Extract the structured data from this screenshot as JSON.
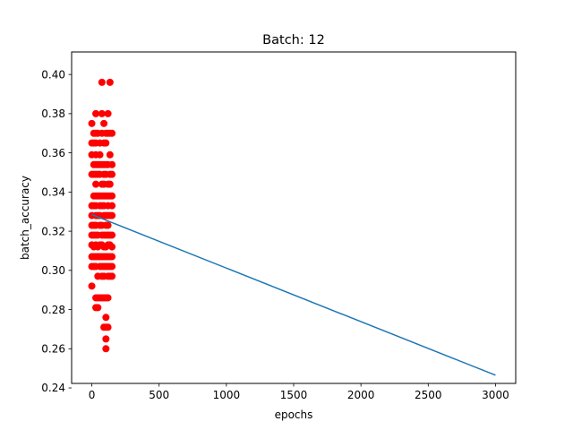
{
  "chart_data": {
    "type": "scatter",
    "title": "Batch: 12",
    "xlabel": "epochs",
    "ylabel": "batch_accuracy",
    "xlim": [
      -150,
      3150
    ],
    "ylim": [
      0.2423,
      0.4115
    ],
    "grid": false,
    "x_ticks": [
      0,
      500,
      1000,
      1500,
      2000,
      2500,
      3000
    ],
    "y_ticks": [
      0.24,
      0.26,
      0.28,
      0.3,
      0.32,
      0.34,
      0.36,
      0.38,
      0.4
    ],
    "x_tick_labels": [
      "0",
      "500",
      "1000",
      "1500",
      "2000",
      "2500",
      "3000"
    ],
    "y_tick_labels": [
      "0.24",
      "0.26",
      "0.28",
      "0.30",
      "0.32",
      "0.34",
      "0.36",
      "0.38",
      "0.40"
    ],
    "series": [
      {
        "kind": "scatter",
        "color": "#ff0000",
        "points": [
          [
            0,
            0.375
          ],
          [
            0,
            0.365
          ],
          [
            0,
            0.359
          ],
          [
            0,
            0.349
          ],
          [
            0,
            0.333
          ],
          [
            0,
            0.328
          ],
          [
            0,
            0.323
          ],
          [
            0,
            0.318
          ],
          [
            0,
            0.313
          ],
          [
            0,
            0.307
          ],
          [
            0,
            0.302
          ],
          [
            0,
            0.292
          ],
          [
            15,
            0.37
          ],
          [
            15,
            0.365
          ],
          [
            15,
            0.354
          ],
          [
            15,
            0.349
          ],
          [
            15,
            0.338
          ],
          [
            15,
            0.333
          ],
          [
            15,
            0.323
          ],
          [
            15,
            0.318
          ],
          [
            15,
            0.312
          ],
          [
            15,
            0.307
          ],
          [
            15,
            0.302
          ],
          [
            30,
            0.38
          ],
          [
            30,
            0.37
          ],
          [
            30,
            0.365
          ],
          [
            30,
            0.359
          ],
          [
            30,
            0.354
          ],
          [
            30,
            0.349
          ],
          [
            30,
            0.344
          ],
          [
            30,
            0.338
          ],
          [
            30,
            0.333
          ],
          [
            30,
            0.328
          ],
          [
            30,
            0.323
          ],
          [
            30,
            0.318
          ],
          [
            30,
            0.313
          ],
          [
            30,
            0.307
          ],
          [
            30,
            0.302
          ],
          [
            30,
            0.286
          ],
          [
            30,
            0.281
          ],
          [
            45,
            0.37
          ],
          [
            45,
            0.354
          ],
          [
            45,
            0.349
          ],
          [
            45,
            0.338
          ],
          [
            45,
            0.328
          ],
          [
            45,
            0.318
          ],
          [
            45,
            0.312
          ],
          [
            45,
            0.307
          ],
          [
            45,
            0.297
          ],
          [
            45,
            0.286
          ],
          [
            45,
            0.281
          ],
          [
            60,
            0.365
          ],
          [
            60,
            0.359
          ],
          [
            60,
            0.354
          ],
          [
            60,
            0.349
          ],
          [
            60,
            0.338
          ],
          [
            60,
            0.333
          ],
          [
            60,
            0.328
          ],
          [
            60,
            0.323
          ],
          [
            60,
            0.313
          ],
          [
            60,
            0.307
          ],
          [
            60,
            0.302
          ],
          [
            60,
            0.286
          ],
          [
            75,
            0.396
          ],
          [
            75,
            0.38
          ],
          [
            75,
            0.37
          ],
          [
            75,
            0.354
          ],
          [
            75,
            0.344
          ],
          [
            75,
            0.338
          ],
          [
            75,
            0.333
          ],
          [
            75,
            0.323
          ],
          [
            75,
            0.318
          ],
          [
            75,
            0.313
          ],
          [
            75,
            0.307
          ],
          [
            75,
            0.302
          ],
          [
            75,
            0.297
          ],
          [
            75,
            0.286
          ],
          [
            90,
            0.375
          ],
          [
            90,
            0.365
          ],
          [
            90,
            0.354
          ],
          [
            90,
            0.349
          ],
          [
            90,
            0.344
          ],
          [
            90,
            0.338
          ],
          [
            90,
            0.333
          ],
          [
            90,
            0.328
          ],
          [
            90,
            0.318
          ],
          [
            90,
            0.312
          ],
          [
            90,
            0.307
          ],
          [
            90,
            0.302
          ],
          [
            90,
            0.297
          ],
          [
            90,
            0.286
          ],
          [
            90,
            0.271
          ],
          [
            105,
            0.37
          ],
          [
            105,
            0.365
          ],
          [
            105,
            0.354
          ],
          [
            105,
            0.349
          ],
          [
            105,
            0.338
          ],
          [
            105,
            0.328
          ],
          [
            105,
            0.323
          ],
          [
            105,
            0.318
          ],
          [
            105,
            0.312
          ],
          [
            105,
            0.307
          ],
          [
            105,
            0.302
          ],
          [
            105,
            0.286
          ],
          [
            105,
            0.276
          ],
          [
            105,
            0.271
          ],
          [
            105,
            0.265
          ],
          [
            105,
            0.26
          ],
          [
            120,
            0.38
          ],
          [
            120,
            0.37
          ],
          [
            120,
            0.354
          ],
          [
            120,
            0.344
          ],
          [
            120,
            0.338
          ],
          [
            120,
            0.333
          ],
          [
            120,
            0.328
          ],
          [
            120,
            0.323
          ],
          [
            120,
            0.318
          ],
          [
            120,
            0.313
          ],
          [
            120,
            0.307
          ],
          [
            120,
            0.302
          ],
          [
            120,
            0.297
          ],
          [
            120,
            0.286
          ],
          [
            120,
            0.271
          ],
          [
            135,
            0.396
          ],
          [
            135,
            0.37
          ],
          [
            135,
            0.359
          ],
          [
            135,
            0.349
          ],
          [
            135,
            0.344
          ],
          [
            135,
            0.338
          ],
          [
            135,
            0.328
          ],
          [
            135,
            0.318
          ],
          [
            135,
            0.313
          ],
          [
            135,
            0.307
          ],
          [
            135,
            0.302
          ],
          [
            135,
            0.297
          ],
          [
            150,
            0.37
          ],
          [
            150,
            0.354
          ],
          [
            150,
            0.349
          ],
          [
            150,
            0.338
          ],
          [
            150,
            0.333
          ],
          [
            150,
            0.328
          ],
          [
            150,
            0.318
          ],
          [
            150,
            0.312
          ],
          [
            150,
            0.307
          ],
          [
            150,
            0.302
          ],
          [
            150,
            0.297
          ]
        ]
      },
      {
        "kind": "line",
        "color": "#1f77b4",
        "x": [
          0,
          3000
        ],
        "y": [
          0.3285,
          0.2465
        ]
      }
    ]
  }
}
